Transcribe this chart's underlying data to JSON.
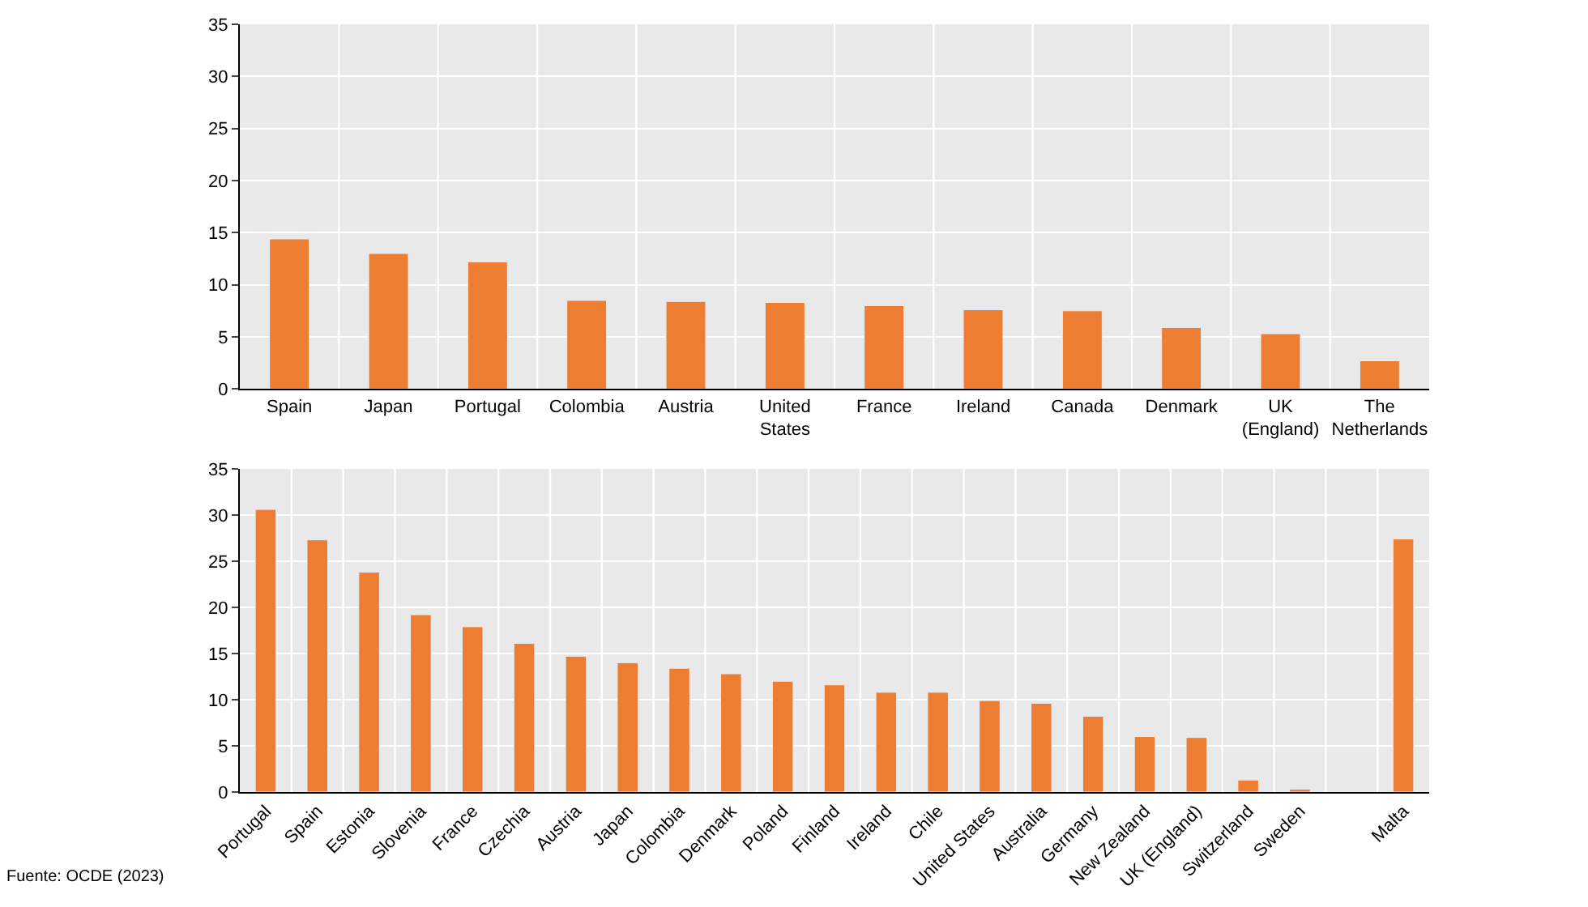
{
  "chart_data": [
    {
      "type": "bar",
      "categories": [
        "Spain",
        "Japan",
        "Portugal",
        "Colombia",
        "Austria",
        "United States",
        "France",
        "Ireland",
        "Canada",
        "Denmark",
        "UK (England)",
        "The Netherlands"
      ],
      "series": [
        {
          "color": "#ed7d31",
          "values": [
            14.4,
            13.0,
            12.2,
            8.5,
            8.4,
            8.3,
            8.0,
            7.6,
            7.5,
            5.9,
            5.3,
            2.7
          ]
        }
      ],
      "ylim": [
        0,
        35
      ],
      "yticks": [
        0,
        5,
        10,
        15,
        20,
        25,
        30,
        35
      ],
      "grid": true
    },
    {
      "type": "bar",
      "categories": [
        "Portugal",
        "Spain",
        "Estonia",
        "Slovenia",
        "France",
        "Czechia",
        "Austria",
        "Japan",
        "Colombia",
        "Denmark",
        "Poland",
        "Finland",
        "Ireland",
        "Chile",
        "United States",
        "Australia",
        "Germany",
        "New Zealand",
        "UK (England)",
        "Switzerland",
        "Sweden",
        null,
        "Malta"
      ],
      "series": [
        {
          "color": "#ed7d31",
          "values": [
            30.6,
            27.3,
            23.8,
            19.2,
            17.9,
            16.1,
            14.7,
            14.0,
            13.4,
            12.8,
            12.0,
            11.6,
            10.8,
            10.8,
            9.9,
            9.6,
            8.2,
            6.0,
            5.9,
            1.3,
            0.3,
            null,
            27.4
          ]
        }
      ],
      "ylim": [
        0,
        35
      ],
      "yticks": [
        0,
        5,
        10,
        15,
        20,
        25,
        30,
        35
      ],
      "grid": true,
      "annotations": [
        "Fuente: OCDE (2023)"
      ]
    }
  ]
}
